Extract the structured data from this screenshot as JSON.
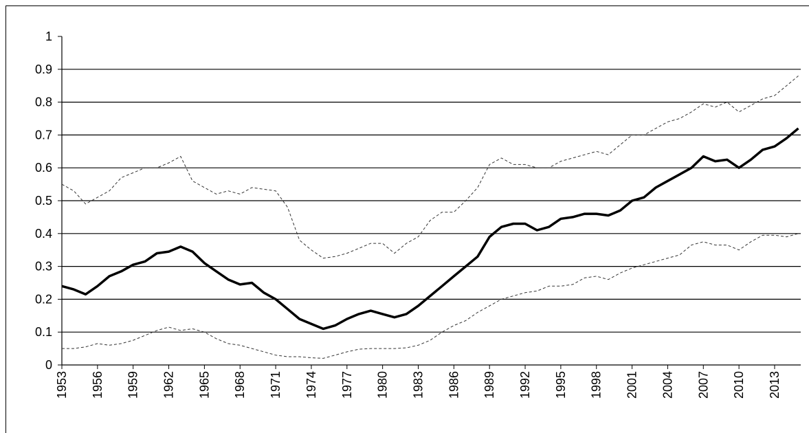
{
  "chart_data": {
    "type": "line",
    "x": [
      1953,
      1954,
      1955,
      1956,
      1957,
      1958,
      1959,
      1960,
      1961,
      1962,
      1963,
      1964,
      1965,
      1966,
      1967,
      1968,
      1969,
      1970,
      1971,
      1972,
      1973,
      1974,
      1975,
      1976,
      1977,
      1978,
      1979,
      1980,
      1981,
      1982,
      1983,
      1984,
      1985,
      1986,
      1987,
      1988,
      1989,
      1990,
      1991,
      1992,
      1993,
      1994,
      1995,
      1996,
      1997,
      1998,
      1999,
      2000,
      2001,
      2002,
      2003,
      2004,
      2005,
      2006,
      2007,
      2008,
      2009,
      2010,
      2011,
      2012,
      2013,
      2014,
      2015
    ],
    "series": [
      {
        "color": "#000000",
        "dashed": false,
        "width": 3.5,
        "values": [
          0.24,
          0.23,
          0.215,
          0.24,
          0.27,
          0.285,
          0.305,
          0.315,
          0.34,
          0.345,
          0.36,
          0.345,
          0.31,
          0.285,
          0.26,
          0.245,
          0.25,
          0.22,
          0.2,
          0.17,
          0.14,
          0.125,
          0.11,
          0.12,
          0.14,
          0.155,
          0.165,
          0.155,
          0.145,
          0.155,
          0.18,
          0.21,
          0.24,
          0.27,
          0.3,
          0.33,
          0.39,
          0.42,
          0.43,
          0.43,
          0.41,
          0.42,
          0.445,
          0.45,
          0.46,
          0.46,
          0.455,
          0.47,
          0.5,
          0.51,
          0.54,
          0.56,
          0.58,
          0.6,
          0.635,
          0.62,
          0.625,
          0.6,
          0.625,
          0.655,
          0.665,
          0.69,
          0.72
        ]
      },
      {
        "color": "#333333",
        "dashed": true,
        "width": 1,
        "values": [
          0.55,
          0.53,
          0.49,
          0.51,
          0.53,
          0.57,
          0.585,
          0.6,
          0.6,
          0.615,
          0.635,
          0.56,
          0.54,
          0.52,
          0.53,
          0.52,
          0.54,
          0.535,
          0.53,
          0.48,
          0.38,
          0.35,
          0.325,
          0.33,
          0.34,
          0.355,
          0.37,
          0.37,
          0.34,
          0.37,
          0.39,
          0.44,
          0.465,
          0.465,
          0.5,
          0.54,
          0.61,
          0.63,
          0.61,
          0.61,
          0.6,
          0.6,
          0.62,
          0.63,
          0.64,
          0.65,
          0.64,
          0.67,
          0.7,
          0.7,
          0.72,
          0.74,
          0.75,
          0.77,
          0.795,
          0.785,
          0.8,
          0.77,
          0.79,
          0.81,
          0.82,
          0.85,
          0.88
        ]
      },
      {
        "color": "#333333",
        "dashed": true,
        "width": 1,
        "values": [
          0.05,
          0.05,
          0.055,
          0.065,
          0.06,
          0.065,
          0.075,
          0.09,
          0.105,
          0.115,
          0.105,
          0.11,
          0.1,
          0.08,
          0.065,
          0.06,
          0.05,
          0.04,
          0.03,
          0.025,
          0.025,
          0.022,
          0.02,
          0.03,
          0.04,
          0.048,
          0.05,
          0.05,
          0.05,
          0.052,
          0.06,
          0.075,
          0.1,
          0.12,
          0.135,
          0.16,
          0.18,
          0.2,
          0.21,
          0.22,
          0.225,
          0.24,
          0.24,
          0.245,
          0.265,
          0.27,
          0.26,
          0.28,
          0.295,
          0.305,
          0.315,
          0.325,
          0.335,
          0.365,
          0.375,
          0.365,
          0.365,
          0.35,
          0.375,
          0.395,
          0.395,
          0.39,
          0.4
        ]
      }
    ],
    "xlim": [
      1953,
      2015.2
    ],
    "xticks": [
      1953,
      1956,
      1959,
      1962,
      1965,
      1968,
      1971,
      1974,
      1977,
      1980,
      1983,
      1986,
      1989,
      1992,
      1995,
      1998,
      2001,
      2004,
      2007,
      2010,
      2013
    ],
    "ylim": [
      0,
      1
    ],
    "yticks": [
      0,
      0.1,
      0.2,
      0.3,
      0.4,
      0.5,
      0.6,
      0.7,
      0.8,
      0.9,
      1
    ],
    "grid": true
  }
}
